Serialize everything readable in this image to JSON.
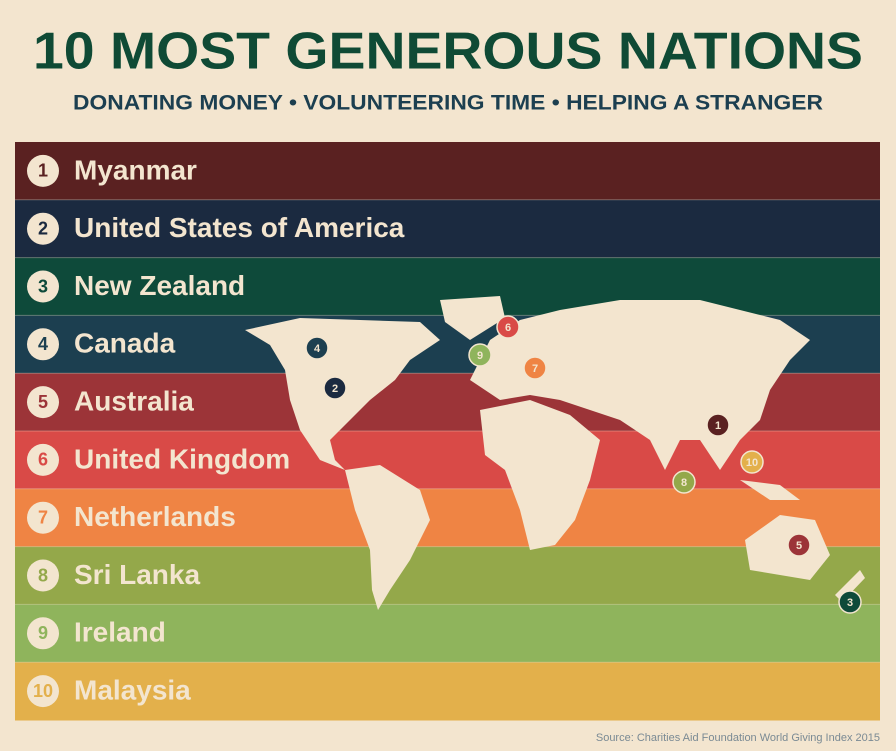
{
  "header": {
    "title": "10 MOST GENEROUS NATIONS",
    "subtitle": "DONATING MONEY • VOLUNTEERING TIME • HELPING A STRANGER"
  },
  "rows": [
    {
      "rank": "1",
      "country": "Myanmar",
      "color": "#5a2121"
    },
    {
      "rank": "2",
      "country": "United States of America",
      "color": "#1b2a40"
    },
    {
      "rank": "3",
      "country": "New Zealand",
      "color": "#0e4a3a"
    },
    {
      "rank": "4",
      "country": "Canada",
      "color": "#1c3f50"
    },
    {
      "rank": "5",
      "country": "Australia",
      "color": "#9c3438"
    },
    {
      "rank": "6",
      "country": "United Kingdom",
      "color": "#d94a47"
    },
    {
      "rank": "7",
      "country": "Netherlands",
      "color": "#ef8444"
    },
    {
      "rank": "8",
      "country": "Sri Lanka",
      "color": "#94a84a"
    },
    {
      "rank": "9",
      "country": "Ireland",
      "color": "#8fb45c"
    },
    {
      "rank": "10",
      "country": "Malaysia",
      "color": "#e3b04b"
    }
  ],
  "source": "Source: Charities Aid Foundation World Giving Index 2015"
}
